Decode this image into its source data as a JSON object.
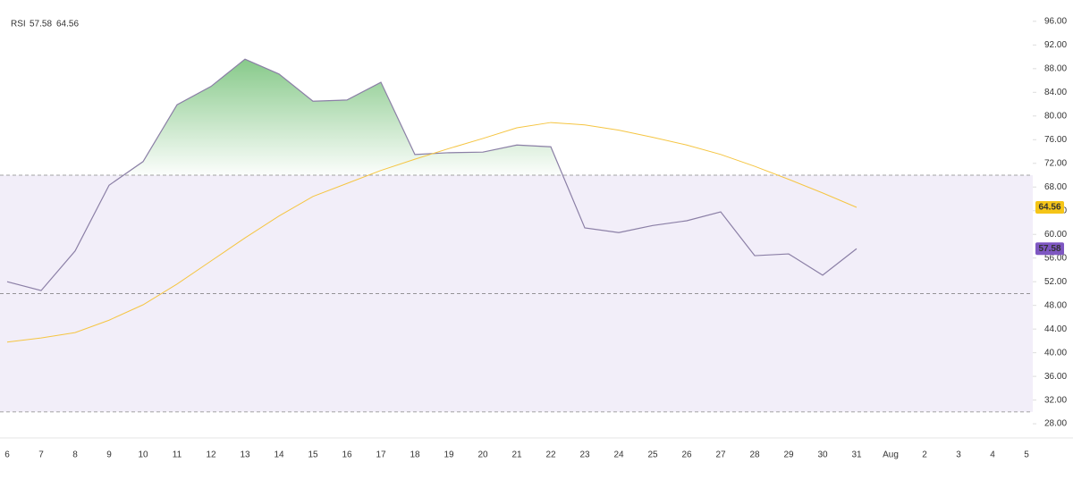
{
  "chart_data": {
    "type": "line",
    "title": "RSI",
    "x": [
      "6",
      "7",
      "8",
      "9",
      "10",
      "11",
      "12",
      "13",
      "14",
      "15",
      "16",
      "17",
      "18",
      "19",
      "20",
      "21",
      "22",
      "23",
      "24",
      "25",
      "26",
      "27",
      "28",
      "29",
      "30",
      "31",
      "Aug",
      "2",
      "3",
      "4",
      "5"
    ],
    "series": [
      {
        "name": "RSI",
        "color": "#8b7fa6",
        "label_color": "#7e57c2",
        "values": [
          52.0,
          50.5,
          57.2,
          68.3,
          72.3,
          81.9,
          85.0,
          89.6,
          87.1,
          82.5,
          82.7,
          85.7,
          73.5,
          73.8,
          73.9,
          75.1,
          74.8,
          61.1,
          60.3,
          61.5,
          62.3,
          63.8,
          56.4,
          56.7,
          53.1,
          57.58,
          null,
          null,
          null,
          null,
          null
        ]
      },
      {
        "color": "#f5c542",
        "label_color": "#f5c518",
        "values": [
          41.8,
          42.5,
          43.4,
          45.5,
          48.1,
          51.6,
          55.5,
          59.4,
          63.1,
          66.4,
          68.6,
          70.8,
          72.7,
          74.5,
          76.2,
          78.0,
          78.9,
          78.5,
          77.6,
          76.4,
          75.1,
          73.5,
          71.5,
          69.3,
          67.0,
          64.56,
          null,
          null,
          null,
          null,
          null
        ]
      }
    ],
    "ylim": [
      25.6,
      99.6
    ],
    "yticks": [
      {
        "value": 28,
        "label": "28.00"
      },
      {
        "value": 32,
        "label": "32.00"
      },
      {
        "value": 36,
        "label": "36.00"
      },
      {
        "value": 40,
        "label": "40.00"
      },
      {
        "value": 44,
        "label": "44.00"
      },
      {
        "value": 48,
        "label": "48.00"
      },
      {
        "value": 52,
        "label": "52.00"
      },
      {
        "value": 56,
        "label": "56.00"
      },
      {
        "value": 60,
        "label": "60.00"
      },
      {
        "value": 64,
        "label": "64.00"
      },
      {
        "value": 68,
        "label": "68.00"
      },
      {
        "value": 72,
        "label": "72.00"
      },
      {
        "value": 76,
        "label": "76.00"
      },
      {
        "value": 80,
        "label": "80.00"
      },
      {
        "value": 84,
        "label": "84.00"
      },
      {
        "value": 88,
        "label": "88.00"
      },
      {
        "value": 92,
        "label": "92.00"
      },
      {
        "value": 96,
        "label": "96.00"
      }
    ],
    "hlines": [
      70,
      50,
      30
    ],
    "band_color": "#7e57c2",
    "fill_color": "#4caf50"
  }
}
